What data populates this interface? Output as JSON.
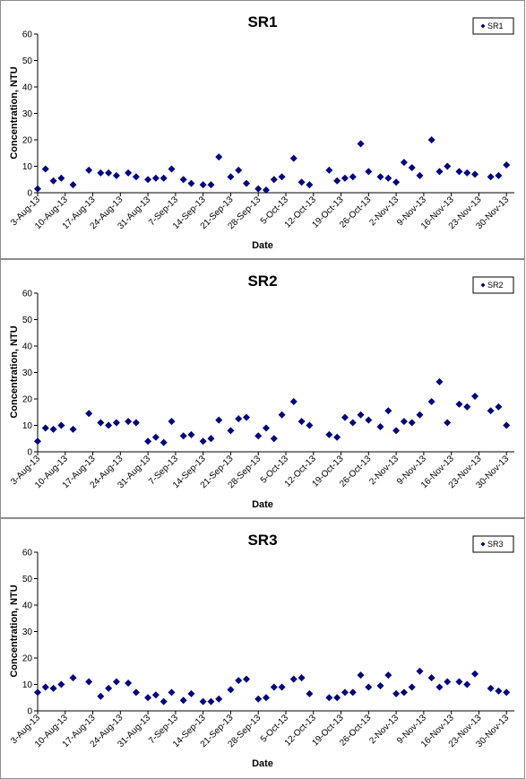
{
  "chart_data": [
    {
      "type": "scatter",
      "title": "SR1",
      "xlabel": "Date",
      "ylabel": "Concentration, NTU",
      "ylim": [
        0,
        60
      ],
      "yticks": [
        "0",
        "10",
        "20",
        "30",
        "40",
        "50",
        "60"
      ],
      "xlim": [
        "2013-08-03",
        "2013-12-02"
      ],
      "xtick_labels": [
        "3-Aug-13",
        "10-Aug-13",
        "17-Aug-13",
        "24-Aug-13",
        "31-Aug-13",
        "7-Sep-13",
        "14-Sep-13",
        "21-Sep-13",
        "28-Sep-13",
        "5-Oct-13",
        "12-Oct-13",
        "19-Oct-13",
        "26-Oct-13",
        "2-Nov-13",
        "9-Nov-13",
        "16-Nov-13",
        "23-Nov-13",
        "30-Nov-13"
      ],
      "grid": false,
      "legend": "top-right",
      "color": "#000080",
      "series": [
        {
          "name": "SR1",
          "x": [
            "2013-08-03",
            "2013-08-05",
            "2013-08-07",
            "2013-08-09",
            "2013-08-12",
            "2013-08-16",
            "2013-08-19",
            "2013-08-21",
            "2013-08-23",
            "2013-08-26",
            "2013-08-28",
            "2013-08-31",
            "2013-09-02",
            "2013-09-04",
            "2013-09-06",
            "2013-09-09",
            "2013-09-11",
            "2013-09-14",
            "2013-09-16",
            "2013-09-18",
            "2013-09-21",
            "2013-09-23",
            "2013-09-25",
            "2013-09-28",
            "2013-09-30",
            "2013-10-02",
            "2013-10-04",
            "2013-10-07",
            "2013-10-09",
            "2013-10-11",
            "2013-10-16",
            "2013-10-18",
            "2013-10-20",
            "2013-10-22",
            "2013-10-24",
            "2013-10-26",
            "2013-10-29",
            "2013-10-31",
            "2013-11-02",
            "2013-11-04",
            "2013-11-06",
            "2013-11-08",
            "2013-11-11",
            "2013-11-13",
            "2013-11-15",
            "2013-11-18",
            "2013-11-20",
            "2013-11-22",
            "2013-11-26",
            "2013-11-28",
            "2013-11-30"
          ],
          "y": [
            1.5,
            9,
            4.5,
            5.5,
            3,
            8.5,
            7.5,
            7.5,
            6.5,
            7.5,
            6,
            5,
            5.5,
            5.5,
            9,
            5,
            3.5,
            3,
            3,
            13.5,
            6,
            8.5,
            3.5,
            1.5,
            1,
            5,
            6,
            13,
            4,
            3,
            8.5,
            4.5,
            5.5,
            6,
            18.5,
            8,
            6,
            5.5,
            4,
            11.5,
            9.5,
            6.5,
            20,
            8,
            10,
            8,
            7.5,
            7,
            6,
            6.5,
            10.5
          ]
        }
      ]
    },
    {
      "type": "scatter",
      "title": "SR2",
      "xlabel": "Date",
      "ylabel": "Concentration, NTU",
      "ylim": [
        0,
        60
      ],
      "yticks": [
        "0",
        "10",
        "20",
        "30",
        "40",
        "50",
        "60"
      ],
      "xlim": [
        "2013-08-03",
        "2013-12-02"
      ],
      "xtick_labels": [
        "3-Aug-13",
        "10-Aug-13",
        "17-Aug-13",
        "24-Aug-13",
        "31-Aug-13",
        "7-Sep-13",
        "14-Sep-13",
        "21-Sep-13",
        "28-Sep-13",
        "5-Oct-13",
        "12-Oct-13",
        "19-Oct-13",
        "26-Oct-13",
        "2-Nov-13",
        "9-Nov-13",
        "16-Nov-13",
        "23-Nov-13",
        "30-Nov-13"
      ],
      "grid": false,
      "legend": "top-right",
      "color": "#000080",
      "series": [
        {
          "name": "SR2",
          "x": [
            "2013-08-03",
            "2013-08-05",
            "2013-08-07",
            "2013-08-09",
            "2013-08-12",
            "2013-08-16",
            "2013-08-19",
            "2013-08-21",
            "2013-08-23",
            "2013-08-26",
            "2013-08-28",
            "2013-08-31",
            "2013-09-02",
            "2013-09-04",
            "2013-09-06",
            "2013-09-09",
            "2013-09-11",
            "2013-09-14",
            "2013-09-16",
            "2013-09-18",
            "2013-09-21",
            "2013-09-23",
            "2013-09-25",
            "2013-09-28",
            "2013-09-30",
            "2013-10-02",
            "2013-10-04",
            "2013-10-07",
            "2013-10-09",
            "2013-10-11",
            "2013-10-16",
            "2013-10-18",
            "2013-10-20",
            "2013-10-22",
            "2013-10-24",
            "2013-10-26",
            "2013-10-29",
            "2013-10-31",
            "2013-11-02",
            "2013-11-04",
            "2013-11-06",
            "2013-11-08",
            "2013-11-11",
            "2013-11-13",
            "2013-11-15",
            "2013-11-18",
            "2013-11-20",
            "2013-11-22",
            "2013-11-26",
            "2013-11-28",
            "2013-11-30"
          ],
          "y": [
            4,
            9,
            8.5,
            10,
            8.5,
            14.5,
            11,
            10,
            11,
            11.5,
            11,
            4,
            5.5,
            3.5,
            11.5,
            6,
            6.5,
            4,
            5,
            12,
            8,
            12.5,
            13,
            6,
            9,
            5,
            14,
            19,
            11.5,
            10,
            6.5,
            5.5,
            13,
            11,
            14,
            12,
            9.5,
            15.5,
            8,
            11.5,
            11,
            14,
            19,
            26.5,
            11,
            18,
            17,
            21,
            15.5,
            17,
            10
          ]
        }
      ]
    },
    {
      "type": "scatter",
      "title": "SR3",
      "xlabel": "Date",
      "ylabel": "Concentration, NTU",
      "ylim": [
        0,
        60
      ],
      "yticks": [
        "0",
        "10",
        "20",
        "30",
        "40",
        "50",
        "60"
      ],
      "xlim": [
        "2013-08-03",
        "2013-12-02"
      ],
      "xtick_labels": [
        "3-Aug-13",
        "10-Aug-13",
        "17-Aug-13",
        "24-Aug-13",
        "31-Aug-13",
        "7-Sep-13",
        "14-Sep-13",
        "21-Sep-13",
        "28-Sep-13",
        "5-Oct-13",
        "12-Oct-13",
        "19-Oct-13",
        "26-Oct-13",
        "2-Nov-13",
        "9-Nov-13",
        "16-Nov-13",
        "23-Nov-13",
        "30-Nov-13"
      ],
      "grid": false,
      "legend": "top-right",
      "color": "#000080",
      "series": [
        {
          "name": "SR3",
          "x": [
            "2013-08-03",
            "2013-08-05",
            "2013-08-07",
            "2013-08-09",
            "2013-08-12",
            "2013-08-16",
            "2013-08-19",
            "2013-08-21",
            "2013-08-23",
            "2013-08-26",
            "2013-08-28",
            "2013-08-31",
            "2013-09-02",
            "2013-09-04",
            "2013-09-06",
            "2013-09-09",
            "2013-09-11",
            "2013-09-14",
            "2013-09-16",
            "2013-09-18",
            "2013-09-21",
            "2013-09-23",
            "2013-09-25",
            "2013-09-28",
            "2013-09-30",
            "2013-10-02",
            "2013-10-04",
            "2013-10-07",
            "2013-10-09",
            "2013-10-11",
            "2013-10-16",
            "2013-10-18",
            "2013-10-20",
            "2013-10-22",
            "2013-10-24",
            "2013-10-26",
            "2013-10-29",
            "2013-10-31",
            "2013-11-02",
            "2013-11-04",
            "2013-11-06",
            "2013-11-08",
            "2013-11-11",
            "2013-11-13",
            "2013-11-15",
            "2013-11-18",
            "2013-11-20",
            "2013-11-22",
            "2013-11-26",
            "2013-11-28",
            "2013-11-30"
          ],
          "y": [
            7,
            9,
            8.5,
            10,
            12.5,
            11,
            5.5,
            8.5,
            11,
            10.5,
            7,
            5,
            6,
            3.5,
            7,
            4,
            6.5,
            3.5,
            3.5,
            4.5,
            8,
            11.5,
            12,
            4.5,
            5,
            9,
            9,
            12,
            12.5,
            6.5,
            5,
            5,
            7,
            7,
            13.5,
            9,
            9.5,
            13.5,
            6.5,
            7,
            9,
            15,
            12.5,
            9,
            11,
            11,
            10,
            14,
            8.5,
            7.5,
            7
          ]
        }
      ]
    }
  ]
}
